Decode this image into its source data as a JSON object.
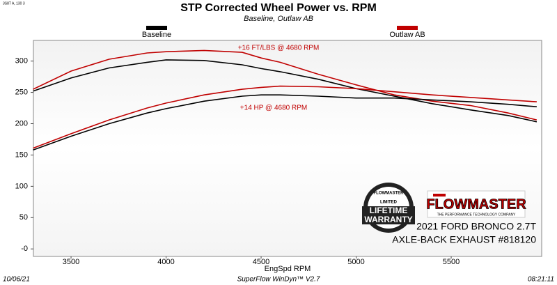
{
  "chart_data": {
    "type": "line",
    "title": "STP Corrected Wheel Power vs. RPM",
    "subtitle": "Baseline, Outlaw AB",
    "x_label": "EngSpd  RPM",
    "corner_code": "3S8T A, 130 3",
    "x": [
      3300,
      3500,
      3700,
      3900,
      4000,
      4200,
      4400,
      4500,
      4600,
      4800,
      5000,
      5200,
      5400,
      5600,
      5800,
      5950
    ],
    "series": [
      {
        "name": "Baseline",
        "color": "#000000",
        "values": [
          252,
          273,
          289,
          298,
          302,
          301,
          294,
          288,
          283,
          271,
          256,
          244,
          232,
          222,
          213,
          203
        ]
      },
      {
        "name": "Outlaw AB",
        "color": "#c00000",
        "values": [
          255,
          284,
          303,
          313,
          315,
          317,
          314,
          305,
          298,
          279,
          262,
          246,
          236,
          229,
          217,
          206
        ]
      },
      {
        "color": "#000000",
        "values": [
          158,
          180,
          200,
          217,
          224,
          236,
          244,
          246,
          246,
          244,
          241,
          241,
          238,
          235,
          231,
          227
        ]
      },
      {
        "color": "#c00000",
        "values": [
          161,
          184,
          206,
          225,
          233,
          246,
          255,
          258,
          260,
          259,
          256,
          251,
          246,
          242,
          238,
          235
        ]
      }
    ],
    "xlim": [
      3302,
      5976
    ],
    "xticks": [
      3500,
      4000,
      4500,
      5000,
      5500
    ],
    "ylim": [
      -12,
      333
    ],
    "yticks": [
      {
        "value": 0,
        "label": "-0"
      },
      50,
      100,
      150,
      200,
      250,
      300
    ],
    "grid": false,
    "annotations": [
      "+16 FT/LBS @ 4680 RPM",
      "+14 HP @ 4680 RPM"
    ],
    "annotation_color": "#c00000",
    "footer": {
      "date": "10/06/21",
      "software": "SuperFlow WinDyn™  V2.7",
      "time": "08:21:11"
    },
    "branding": {
      "logo": "FLOWMASTER",
      "tagline": "THE PERFORMANCE TECHNOLOGY COMPANY",
      "vehicle": "2021 FORD BRONCO 2.7T",
      "product": "AXLE-BACK EXHAUST #818120",
      "badge_top": "FLOWMASTER",
      "badge_mid": "LIMITED",
      "badge_big1": "LIFETIME",
      "badge_big2": "WARRANTY"
    }
  }
}
